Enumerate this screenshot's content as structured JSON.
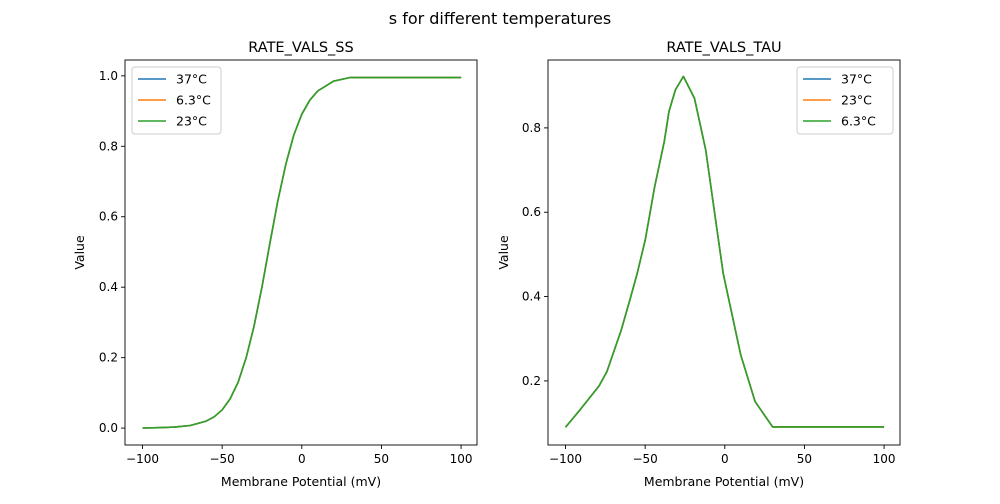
{
  "figure_title": "s for different temperatures",
  "chart_data": [
    {
      "type": "line",
      "title": "RATE_VALS_SS",
      "xlabel": "Membrane Potential (mV)",
      "ylabel": "Value",
      "xlim": [
        -111,
        110
      ],
      "ylim": [
        -0.048,
        1.045
      ],
      "xticks": [
        -100,
        -50,
        0,
        50,
        100
      ],
      "xtick_labels": [
        "−100",
        "−50",
        "0",
        "50",
        "100"
      ],
      "yticks": [
        0.0,
        0.2,
        0.4,
        0.6,
        0.8,
        1.0
      ],
      "ytick_labels": [
        "0.0",
        "0.2",
        "0.4",
        "0.6",
        "0.8",
        "1.0"
      ],
      "grid": false,
      "legend_placement": "upper-left",
      "x": [
        -100,
        -90,
        -80,
        -70,
        -60,
        -55,
        -50,
        -45,
        -40,
        -35,
        -30,
        -25,
        -20,
        -15,
        -10,
        -5,
        0,
        5,
        10,
        20,
        30,
        40,
        50,
        60,
        70,
        80,
        90,
        100
      ],
      "series": [
        {
          "name": "37°C",
          "color": "#1f77b4",
          "values": [
            0.0004,
            0.001,
            0.0027,
            0.0074,
            0.0198,
            0.032,
            0.052,
            0.083,
            0.13,
            0.198,
            0.289,
            0.401,
            0.525,
            0.646,
            0.75,
            0.832,
            0.891,
            0.931,
            0.957,
            0.985,
            0.995,
            0.995,
            0.995,
            0.995,
            0.995,
            0.995,
            0.995,
            0.995
          ]
        },
        {
          "name": "6.3°C",
          "color": "#ff7f0e",
          "values": [
            0.0004,
            0.001,
            0.0027,
            0.0074,
            0.0198,
            0.032,
            0.052,
            0.083,
            0.13,
            0.198,
            0.289,
            0.401,
            0.525,
            0.646,
            0.75,
            0.832,
            0.891,
            0.931,
            0.957,
            0.985,
            0.995,
            0.995,
            0.995,
            0.995,
            0.995,
            0.995,
            0.995,
            0.995
          ]
        },
        {
          "name": "23°C",
          "color": "#2ca02c",
          "values": [
            0.0004,
            0.001,
            0.0027,
            0.0074,
            0.0198,
            0.032,
            0.052,
            0.083,
            0.13,
            0.198,
            0.289,
            0.401,
            0.525,
            0.646,
            0.75,
            0.832,
            0.891,
            0.931,
            0.957,
            0.985,
            0.995,
            0.995,
            0.995,
            0.995,
            0.995,
            0.995,
            0.995,
            0.995
          ]
        }
      ]
    },
    {
      "type": "line",
      "title": "RATE_VALS_TAU",
      "xlabel": "Membrane Potential (mV)",
      "ylabel": "Value",
      "xlim": [
        -111,
        110
      ],
      "ylim": [
        0.048,
        0.961
      ],
      "xticks": [
        -100,
        -50,
        0,
        50,
        100
      ],
      "xtick_labels": [
        "−100",
        "−50",
        "0",
        "50",
        "100"
      ],
      "yticks": [
        0.2,
        0.4,
        0.6,
        0.8
      ],
      "ytick_labels": [
        "0.2",
        "0.4",
        "0.6",
        "0.8"
      ],
      "grid": false,
      "legend_placement": "upper-right",
      "x": [
        -100,
        -91,
        -79,
        -74,
        -65,
        -59,
        -55,
        -50,
        -44,
        -38,
        -35,
        -31,
        -26,
        -19,
        -12,
        -1,
        10,
        19,
        30,
        100
      ],
      "series": [
        {
          "name": "37°C",
          "color": "#1f77b4",
          "values": [
            0.09,
            0.131,
            0.188,
            0.222,
            0.321,
            0.4,
            0.455,
            0.534,
            0.661,
            0.768,
            0.839,
            0.89,
            0.922,
            0.87,
            0.748,
            0.455,
            0.262,
            0.151,
            0.091,
            0.091
          ]
        },
        {
          "name": "23°C",
          "color": "#ff7f0e",
          "values": [
            0.09,
            0.131,
            0.188,
            0.222,
            0.321,
            0.4,
            0.455,
            0.534,
            0.661,
            0.768,
            0.839,
            0.89,
            0.922,
            0.87,
            0.748,
            0.455,
            0.262,
            0.151,
            0.091,
            0.091
          ]
        },
        {
          "name": "6.3°C",
          "color": "#2ca02c",
          "values": [
            0.09,
            0.131,
            0.188,
            0.222,
            0.321,
            0.4,
            0.455,
            0.534,
            0.661,
            0.768,
            0.839,
            0.89,
            0.922,
            0.87,
            0.748,
            0.455,
            0.262,
            0.151,
            0.091,
            0.091
          ]
        }
      ]
    }
  ]
}
